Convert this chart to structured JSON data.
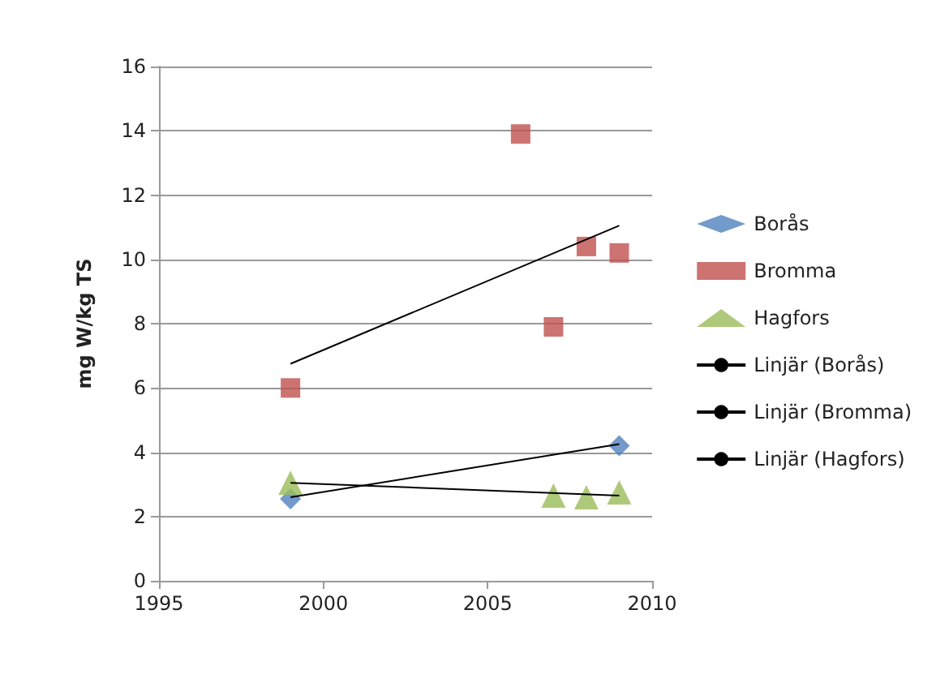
{
  "chart_data": {
    "type": "scatter",
    "ylabel": "mg W/kg TS",
    "xlim": [
      1995,
      2010
    ],
    "xticks": [
      1995,
      2000,
      2005,
      2010
    ],
    "ylim": [
      0,
      16
    ],
    "yticks": [
      0,
      2,
      4,
      6,
      8,
      10,
      12,
      14,
      16
    ],
    "grid": "y",
    "legend": "right",
    "series": [
      {
        "name": "Borås",
        "color": "#4f81bd",
        "marker": "diamond",
        "x": [
          1999,
          2009
        ],
        "values": [
          2.55,
          4.2
        ]
      },
      {
        "name": "Bromma",
        "color": "#c0504d",
        "marker": "square",
        "x": [
          1999,
          2006,
          2007,
          2008,
          2009
        ],
        "values": [
          6.0,
          13.9,
          7.9,
          10.4,
          10.2
        ]
      },
      {
        "name": "Hagfors",
        "color": "#9bbb59",
        "marker": "triangle",
        "x": [
          1999,
          2007,
          2008,
          2009
        ],
        "values": [
          3.05,
          2.65,
          2.6,
          2.75
        ]
      },
      {
        "name": "Linjär (Borås)",
        "type": "line",
        "color": "#000000",
        "marker": "none",
        "x": [
          1999,
          2009
        ],
        "values": [
          2.6,
          4.25
        ]
      },
      {
        "name": "Linjär (Bromma)",
        "type": "line",
        "color": "#000000",
        "marker": "none",
        "x": [
          1999,
          2009
        ],
        "values": [
          6.75,
          11.05
        ]
      },
      {
        "name": "Linjär (Hagfors)",
        "type": "line",
        "color": "#000000",
        "marker": "none",
        "x": [
          1999,
          2009
        ],
        "values": [
          3.05,
          2.65
        ]
      }
    ]
  }
}
